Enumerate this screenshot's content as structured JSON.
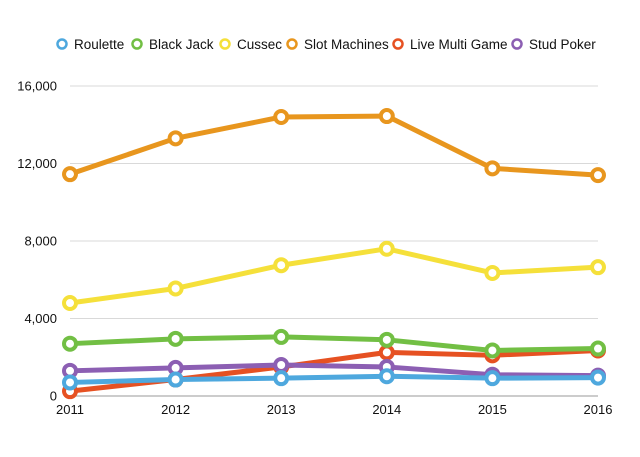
{
  "chart_data": {
    "type": "line",
    "title": "",
    "xlabel": "",
    "ylabel": "",
    "x": [
      "2011",
      "2012",
      "2013",
      "2014",
      "2015",
      "2016"
    ],
    "ylim": [
      0,
      16000
    ],
    "yticks": [
      0,
      4000,
      8000,
      12000,
      16000
    ],
    "ytick_labels": [
      "0",
      "4,000",
      "8,000",
      "12,000",
      "16,000"
    ],
    "grid": "horizontal",
    "legend_position": "top",
    "series": [
      {
        "name": "Roulette",
        "color": "#4ea8de",
        "values": [
          700,
          850,
          920,
          1020,
          920,
          950
        ]
      },
      {
        "name": "Black Jack",
        "color": "#72bf44",
        "values": [
          2700,
          2950,
          3050,
          2900,
          2350,
          2450
        ]
      },
      {
        "name": "Cussec",
        "color": "#f5e03a",
        "values": [
          4800,
          5550,
          6750,
          7600,
          6350,
          6650
        ]
      },
      {
        "name": "Slot Machines",
        "color": "#e8961e",
        "values": [
          11450,
          13300,
          14400,
          14450,
          11750,
          11400
        ]
      },
      {
        "name": "Live Multi Game",
        "color": "#e65122",
        "values": [
          250,
          850,
          1500,
          2250,
          2100,
          2350
        ]
      },
      {
        "name": "Stud Poker",
        "color": "#8c5fb3",
        "values": [
          1300,
          1450,
          1600,
          1500,
          1100,
          1050
        ]
      }
    ]
  }
}
